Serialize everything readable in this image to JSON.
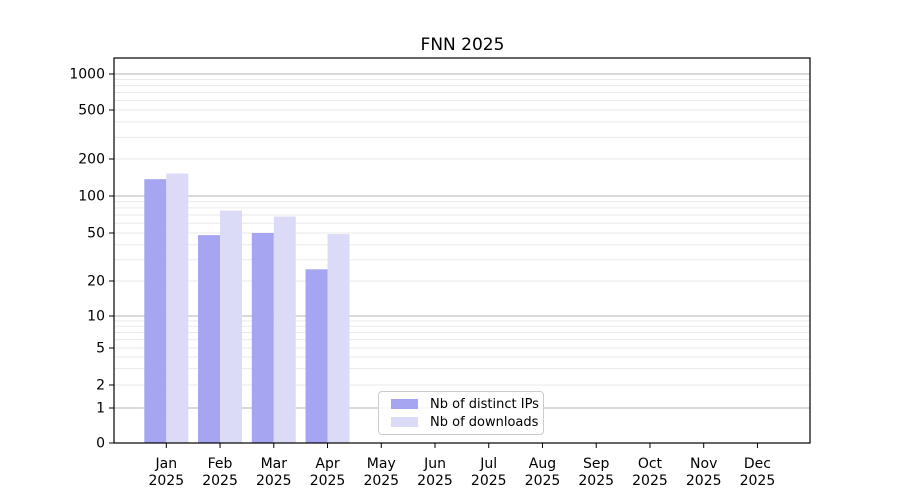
{
  "chart_data": {
    "type": "bar",
    "title": "FNN 2025",
    "year": "2025",
    "months": [
      "Jan",
      "Feb",
      "Mar",
      "Apr",
      "May",
      "Jun",
      "Jul",
      "Aug",
      "Sep",
      "Oct",
      "Nov",
      "Dec"
    ],
    "series": [
      {
        "name": "Nb of distinct IPs",
        "color": "#a5a5f1",
        "values": [
          137,
          48,
          50,
          25,
          0,
          0,
          0,
          0,
          0,
          0,
          0,
          0
        ]
      },
      {
        "name": "Nb of downloads",
        "color": "#dbdbf8",
        "values": [
          152,
          76,
          68,
          49,
          0,
          0,
          0,
          0,
          0,
          0,
          0,
          0
        ]
      }
    ],
    "xlabel": "",
    "ylabel": "",
    "yscale": "symlog",
    "yticks": [
      0,
      1,
      2,
      5,
      10,
      20,
      50,
      100,
      200,
      500,
      1000
    ],
    "ylim": [
      0,
      1300
    ],
    "grid": "horizontal major and log-minor gridlines",
    "legend_position": "lower center inside plot"
  },
  "colors": {
    "bar_ips": "#a5a5f1",
    "bar_downloads": "#dbdbf8",
    "major_grid": "#b3b3b3",
    "minor_grid": "#eaeaea",
    "spine": "#000000",
    "tick_text": "#000000",
    "legend_border": "#cccccc",
    "background": "#ffffff"
  }
}
